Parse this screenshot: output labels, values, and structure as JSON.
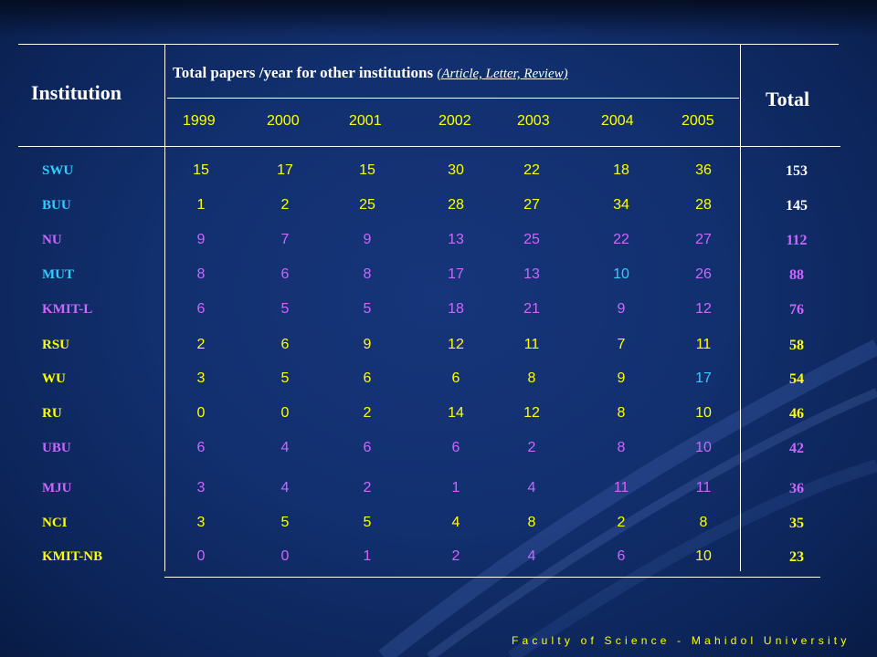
{
  "header": {
    "institution": "Institution",
    "papers_title": "Total papers /year for other institutions",
    "papers_types": "(Article, Letter, Review)",
    "total": "Total"
  },
  "years": [
    "1999",
    "2000",
    "2001",
    "2002",
    "2003",
    "2004",
    "2005"
  ],
  "colors": {
    "yellow": "#ffff00",
    "cyan": "#33ccff",
    "pink": "#cc66ff",
    "green": "#66ff66",
    "white": "#ffffff"
  },
  "rows": [
    {
      "name": "SWU",
      "name_color": "#33ccff",
      "values": [
        "15",
        "17",
        "15",
        "30",
        "22",
        "18",
        "36"
      ],
      "value_colors": [
        "#ffff00",
        "#ffff00",
        "#ffff00",
        "#ffff00",
        "#ffff00",
        "#ffff00",
        "#ffff00"
      ],
      "total": "153",
      "total_color": "#ffffff"
    },
    {
      "name": "BUU",
      "name_color": "#33ccff",
      "values": [
        "1",
        "2",
        "25",
        "28",
        "27",
        "34",
        "28"
      ],
      "value_colors": [
        "#ffff00",
        "#ffff00",
        "#ffff00",
        "#ffff00",
        "#ffff00",
        "#ffff00",
        "#ffff00"
      ],
      "total": "145",
      "total_color": "#ffffff"
    },
    {
      "name": "NU",
      "name_color": "#cc66ff",
      "values": [
        "9",
        "7",
        "9",
        "13",
        "25",
        "22",
        "27"
      ],
      "value_colors": [
        "#cc66ff",
        "#cc66ff",
        "#cc66ff",
        "#cc66ff",
        "#cc66ff",
        "#cc66ff",
        "#cc66ff"
      ],
      "total": "112",
      "total_color": "#cc66ff"
    },
    {
      "name": "MUT",
      "name_color": "#33ccff",
      "values": [
        "8",
        "6",
        "8",
        "17",
        "13",
        "10",
        "26"
      ],
      "value_colors": [
        "#cc66ff",
        "#cc66ff",
        "#cc66ff",
        "#cc66ff",
        "#cc66ff",
        "#33ccff",
        "#cc66ff"
      ],
      "total": "88",
      "total_color": "#cc66ff"
    },
    {
      "name": "KMIT-L",
      "name_color": "#cc66ff",
      "values": [
        "6",
        "5",
        "5",
        "18",
        "21",
        "9",
        "12"
      ],
      "value_colors": [
        "#cc66ff",
        "#cc66ff",
        "#cc66ff",
        "#cc66ff",
        "#cc66ff",
        "#cc66ff",
        "#cc66ff"
      ],
      "total": "76",
      "total_color": "#cc66ff"
    },
    {
      "name": "RSU",
      "name_color": "#ffff00",
      "values": [
        "2",
        "6",
        "9",
        "12",
        "11",
        "7",
        "11"
      ],
      "value_colors": [
        "#ffff00",
        "#ffff00",
        "#ffff00",
        "#ffff00",
        "#ffff00",
        "#ffff00",
        "#ffff00"
      ],
      "total": "58",
      "total_color": "#ffff00"
    },
    {
      "name": "WU",
      "name_color": "#ffff00",
      "values": [
        "3",
        "5",
        "6",
        "6",
        "8",
        "9",
        "17"
      ],
      "value_colors": [
        "#ffff00",
        "#ffff00",
        "#ffff00",
        "#ffff00",
        "#ffff00",
        "#ffff00",
        "#33ccff"
      ],
      "total": "54",
      "total_color": "#ffff00"
    },
    {
      "name": "RU",
      "name_color": "#ffff00",
      "values": [
        "0",
        "0",
        "2",
        "14",
        "12",
        "8",
        "10"
      ],
      "value_colors": [
        "#ffff00",
        "#ffff00",
        "#ffff00",
        "#ffff00",
        "#ffff00",
        "#ffff00",
        "#ffff00"
      ],
      "total": "46",
      "total_color": "#ffff00"
    },
    {
      "name": "UBU",
      "name_color": "#cc66ff",
      "values": [
        "6",
        "4",
        "6",
        "6",
        "2",
        "8",
        "10"
      ],
      "value_colors": [
        "#cc66ff",
        "#cc66ff",
        "#cc66ff",
        "#cc66ff",
        "#cc66ff",
        "#cc66ff",
        "#cc66ff"
      ],
      "total": "42",
      "total_color": "#cc66ff"
    },
    {
      "name": "MJU",
      "name_color": "#cc66ff",
      "values": [
        "3",
        "4",
        "2",
        "1",
        "4",
        "11",
        "11"
      ],
      "value_colors": [
        "#cc66ff",
        "#cc66ff",
        "#cc66ff",
        "#cc66ff",
        "#cc66ff",
        "#cc66ff",
        "#cc66ff"
      ],
      "total": "36",
      "total_color": "#cc66ff"
    },
    {
      "name": "NCI",
      "name_color": "#ffff00",
      "values": [
        "3",
        "5",
        "5",
        "4",
        "8",
        "2",
        "8"
      ],
      "value_colors": [
        "#ffff00",
        "#ffff00",
        "#ffff00",
        "#ffff00",
        "#ffff00",
        "#ffff00",
        "#ffff00"
      ],
      "total": "35",
      "total_color": "#ffff00"
    },
    {
      "name": "KMIT-NB",
      "name_color": "#ffff00",
      "values": [
        "0",
        "0",
        "1",
        "2",
        "4",
        "6",
        "10"
      ],
      "value_colors": [
        "#cc66ff",
        "#cc66ff",
        "#cc66ff",
        "#cc66ff",
        "#cc66ff",
        "#cc66ff",
        "#ffff00"
      ],
      "total": "23",
      "total_color": "#ffff00"
    }
  ],
  "footer": "Faculty of Science - Mahidol University"
}
